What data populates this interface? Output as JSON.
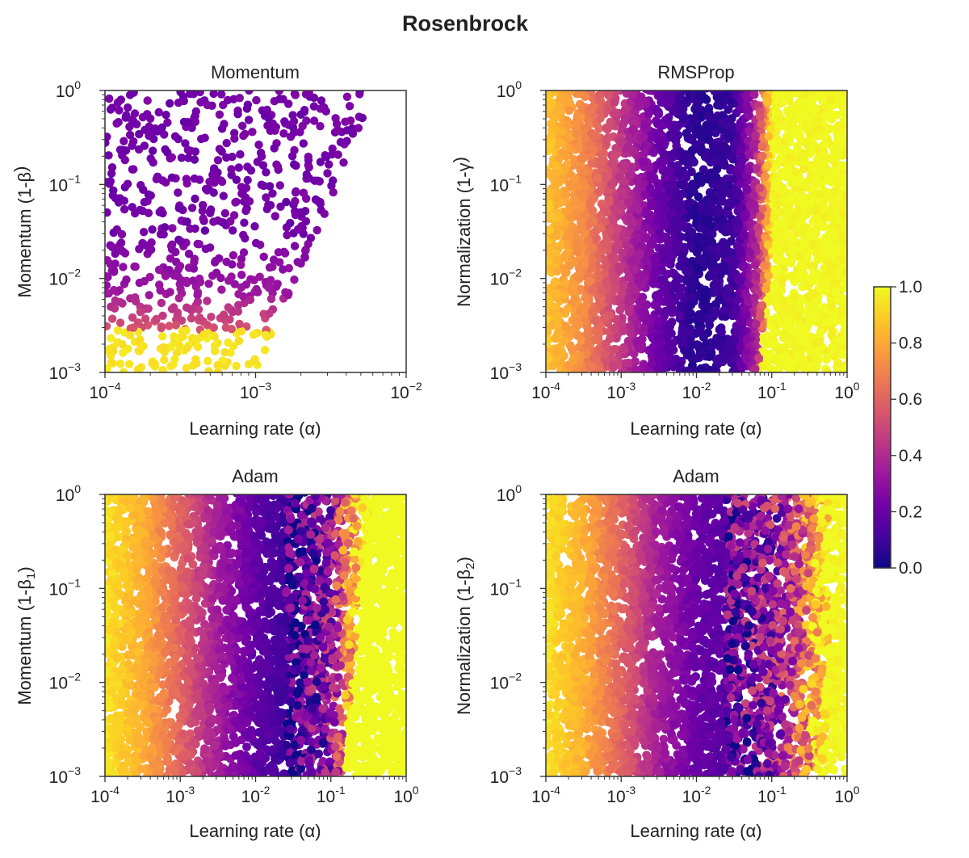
{
  "figure_title": "Rosenbrock",
  "colorscale": [
    "#0d0887",
    "#46039f",
    "#7201a8",
    "#9c179e",
    "#bd3786",
    "#d8576b",
    "#ed7953",
    "#fb9f3a",
    "#fdca26",
    "#f0f921"
  ],
  "colorbar": {
    "min": 0,
    "max": 1,
    "ticks": [
      "0.0",
      "0.2",
      "0.4",
      "0.6",
      "0.8",
      "1.0"
    ],
    "tick_values": [
      0,
      0.2,
      0.4,
      0.6,
      0.8,
      1.0
    ]
  },
  "chart_data": [
    {
      "id": "momentum",
      "type": "scatter",
      "title": "Momentum",
      "xlabel": "Learning rate (α)",
      "ylabel_main": "Momentum (1-β",
      "ylabel_sub": "",
      "ylabel_end": ")",
      "xscale": "log",
      "yscale": "log",
      "xlim_exp": [
        -4,
        -2
      ],
      "ylim_exp": [
        -3,
        0
      ],
      "x_ticks": [
        {
          "base": "10",
          "exp": "−4"
        },
        {
          "base": "10",
          "exp": "−3"
        },
        {
          "base": "10",
          "exp": "−2"
        }
      ],
      "y_ticks": [
        {
          "base": "10",
          "exp": "−3"
        },
        {
          "base": "10",
          "exp": "−2"
        },
        {
          "base": "10",
          "exp": "−1"
        },
        {
          "base": "10",
          "exp": "0"
        }
      ],
      "approx_points": [
        {
          "log_lr": -3.9,
          "log_mom": -0.1,
          "loss": 0.2
        },
        {
          "log_lr": -3.6,
          "log_mom": -0.1,
          "loss": 0.22
        },
        {
          "log_lr": -3.2,
          "log_mom": -0.05,
          "loss": 0.24
        },
        {
          "log_lr": -3.4,
          "log_mom": -0.5,
          "loss": 0.22
        },
        {
          "log_lr": -3.6,
          "log_mom": -1.0,
          "loss": 0.25
        },
        {
          "log_lr": -3.9,
          "log_mom": -1.7,
          "loss": 0.35
        },
        {
          "log_lr": -3.95,
          "log_mom": -2.2,
          "loss": 0.5
        },
        {
          "log_lr": -3.98,
          "log_mom": -2.6,
          "loss": 0.95
        }
      ]
    },
    {
      "id": "rmsprop",
      "type": "scatter",
      "title": "RMSProp",
      "xlabel": "Learning rate (α)",
      "ylabel_main": "Normalization (1-γ",
      "ylabel_sub": "",
      "ylabel_end": ")",
      "xscale": "log",
      "yscale": "log",
      "xlim_exp": [
        -4,
        0
      ],
      "ylim_exp": [
        -3,
        0
      ],
      "x_ticks": [
        {
          "base": "10",
          "exp": "-4"
        },
        {
          "base": "10",
          "exp": "-3"
        },
        {
          "base": "10",
          "exp": "-2"
        },
        {
          "base": "10",
          "exp": "-1"
        },
        {
          "base": "10",
          "exp": "0"
        }
      ],
      "y_ticks": [
        {
          "base": "10",
          "exp": "−3"
        },
        {
          "base": "10",
          "exp": "−2"
        },
        {
          "base": "10",
          "exp": "−1"
        },
        {
          "base": "10",
          "exp": "0"
        }
      ],
      "loss_profile_lr": [
        {
          "log_lr": -4.0,
          "loss": 0.88
        },
        {
          "log_lr": -3.5,
          "loss": 0.72
        },
        {
          "log_lr": -3.0,
          "loss": 0.45
        },
        {
          "log_lr": -2.5,
          "loss": 0.2
        },
        {
          "log_lr": -2.0,
          "loss": 0.05
        },
        {
          "log_lr": -1.5,
          "loss": 0.1
        },
        {
          "log_lr": -1.2,
          "loss": 0.4
        },
        {
          "log_lr": -1.0,
          "loss": 1.0
        },
        {
          "log_lr": 0.0,
          "loss": 1.0
        }
      ]
    },
    {
      "id": "adam_beta1",
      "type": "scatter",
      "title": "Adam",
      "xlabel": "Learning rate (α)",
      "ylabel_main": "Momentum (1-β",
      "ylabel_sub": "1",
      "ylabel_end": ")",
      "xscale": "log",
      "yscale": "log",
      "xlim_exp": [
        -4,
        0
      ],
      "ylim_exp": [
        -3,
        0
      ],
      "x_ticks": [
        {
          "base": "10",
          "exp": "-4"
        },
        {
          "base": "10",
          "exp": "-3"
        },
        {
          "base": "10",
          "exp": "-2"
        },
        {
          "base": "10",
          "exp": "-1"
        },
        {
          "base": "10",
          "exp": "0"
        }
      ],
      "y_ticks": [
        {
          "base": "10",
          "exp": "−3"
        },
        {
          "base": "10",
          "exp": "−2"
        },
        {
          "base": "10",
          "exp": "−1"
        },
        {
          "base": "10",
          "exp": "0"
        }
      ],
      "loss_profile_lr": [
        {
          "log_lr": -4.0,
          "loss": 0.95
        },
        {
          "log_lr": -3.5,
          "loss": 0.82
        },
        {
          "log_lr": -3.0,
          "loss": 0.6
        },
        {
          "log_lr": -2.5,
          "loss": 0.35
        },
        {
          "log_lr": -2.0,
          "loss": 0.18
        },
        {
          "log_lr": -1.5,
          "loss": 0.08
        },
        {
          "log_lr": -1.0,
          "loss": 0.3
        },
        {
          "log_lr": -0.6,
          "loss": 1.0
        },
        {
          "log_lr": 0.0,
          "loss": 1.0
        }
      ]
    },
    {
      "id": "adam_beta2",
      "type": "scatter",
      "title": "Adam",
      "xlabel": "Learning rate (α)",
      "ylabel_main": "Normalization (1-β",
      "ylabel_sub": "2",
      "ylabel_end": ")",
      "xscale": "log",
      "yscale": "log",
      "xlim_exp": [
        -4,
        0
      ],
      "ylim_exp": [
        -3,
        0
      ],
      "x_ticks": [
        {
          "base": "10",
          "exp": "-4"
        },
        {
          "base": "10",
          "exp": "-3"
        },
        {
          "base": "10",
          "exp": "-2"
        },
        {
          "base": "10",
          "exp": "-1"
        },
        {
          "base": "10",
          "exp": "0"
        }
      ],
      "y_ticks": [
        {
          "base": "10",
          "exp": "−3"
        },
        {
          "base": "10",
          "exp": "−2"
        },
        {
          "base": "10",
          "exp": "−1"
        },
        {
          "base": "10",
          "exp": "0"
        }
      ],
      "loss_profile_lr": [
        {
          "log_lr": -4.0,
          "loss": 0.95
        },
        {
          "log_lr": -3.5,
          "loss": 0.82
        },
        {
          "log_lr": -3.0,
          "loss": 0.6
        },
        {
          "log_lr": -2.5,
          "loss": 0.35
        },
        {
          "log_lr": -2.0,
          "loss": 0.2
        },
        {
          "log_lr": -1.5,
          "loss": 0.15
        },
        {
          "log_lr": -1.0,
          "loss": 0.25
        },
        {
          "log_lr": -0.6,
          "loss": 0.55
        },
        {
          "log_lr": -0.3,
          "loss": 1.0
        },
        {
          "log_lr": 0.0,
          "loss": 1.0
        }
      ]
    }
  ]
}
